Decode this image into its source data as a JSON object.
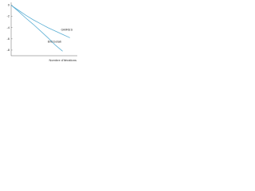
{
  "chart_data": {
    "type": "line",
    "x_label": "Nombre d'itérations",
    "x": [
      0,
      1,
      2,
      3,
      4,
      5,
      6,
      7,
      8
    ],
    "xlim": [
      0,
      9
    ],
    "ylim": [
      -9,
      0.5
    ],
    "yticks": [
      0,
      -2,
      -4,
      -6,
      -8
    ],
    "series": [
      {
        "name": "GMRES",
        "color": "#5aaed4",
        "values": [
          0,
          -0.9,
          -1.8,
          -2.6,
          -3.3,
          -4.0,
          -4.6,
          -5.2,
          -5.8
        ]
      },
      {
        "name": "BICGstab",
        "color": "#5aaed4",
        "values": [
          0,
          -1.1,
          -2.3,
          -3.4,
          -4.6,
          -5.8,
          -7.1,
          -8.2,
          null
        ]
      }
    ]
  }
}
